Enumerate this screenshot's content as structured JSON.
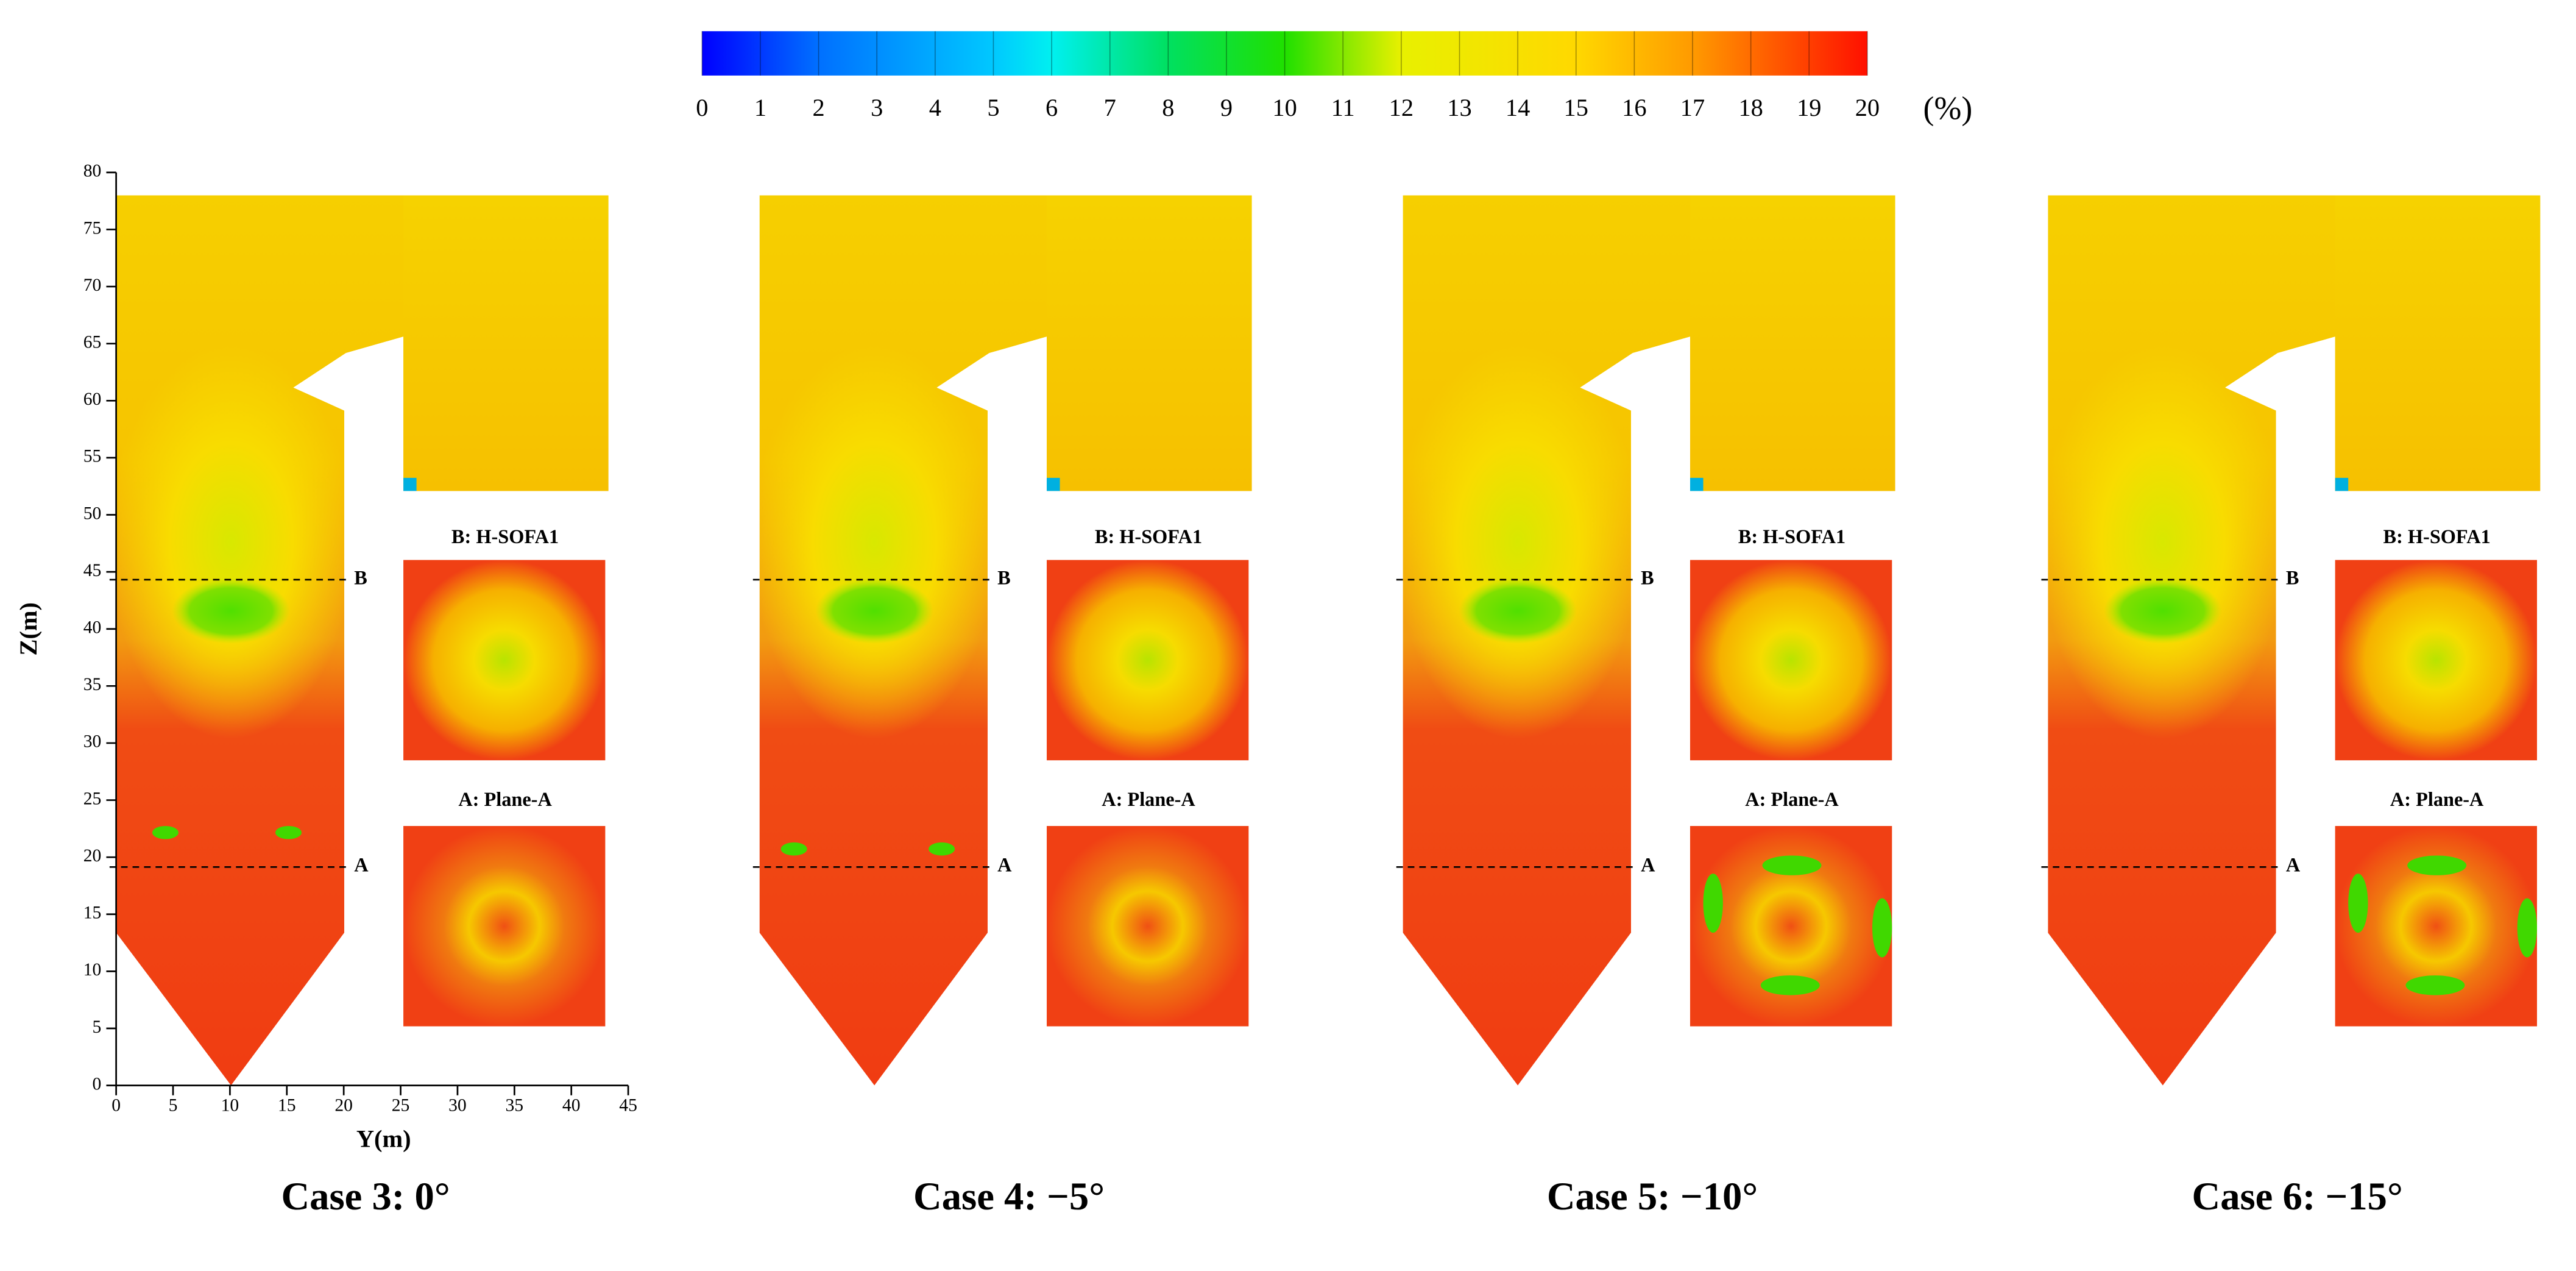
{
  "colorbar": {
    "ticks": [
      0,
      1,
      2,
      3,
      4,
      5,
      6,
      7,
      8,
      9,
      10,
      11,
      12,
      13,
      14,
      15,
      16,
      17,
      18,
      19,
      20
    ],
    "unit": "(%)"
  },
  "axes": {
    "y_label": "Z(m)",
    "y_ticks": [
      0,
      5,
      10,
      15,
      20,
      25,
      30,
      35,
      40,
      45,
      50,
      55,
      60,
      65,
      70,
      75,
      80
    ],
    "x_label": "Y(m)",
    "x_ticks": [
      0,
      5,
      10,
      15,
      20,
      25,
      30,
      35,
      40,
      45
    ]
  },
  "panels": [
    {
      "caption": "Case 3: 0°",
      "line_labels": [
        "B",
        "A"
      ],
      "insets": [
        "B: H-SOFA1",
        "A: Plane-A"
      ]
    },
    {
      "caption": "Case 4: −5°",
      "line_labels": [
        "B",
        "A"
      ],
      "insets": [
        "B: H-SOFA1",
        "A: Plane-A"
      ]
    },
    {
      "caption": "Case 5: −10°",
      "line_labels": [
        "B",
        "A"
      ],
      "insets": [
        "B: H-SOFA1",
        "A: Plane-A"
      ]
    },
    {
      "caption": "Case 6: −15°",
      "line_labels": [
        "B",
        "A"
      ],
      "insets": [
        "B: H-SOFA1",
        "A: Plane-A"
      ]
    }
  ]
}
